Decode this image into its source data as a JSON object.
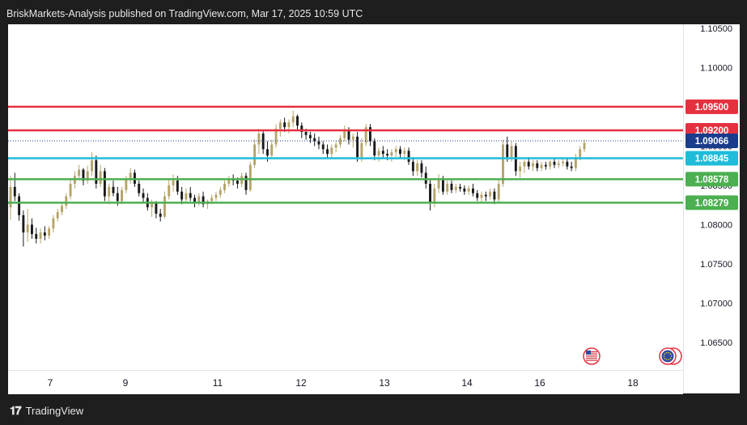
{
  "header": {
    "published": "BriskMarkets-Analysis published on TradingView.com, Mar 17, 2025 10:59 UTC"
  },
  "footer": {
    "brand": "TradingView"
  },
  "colors": {
    "up": "#b5a46a",
    "down": "#1a1a1a",
    "resistance": "#e5303f",
    "support": "#4caf50",
    "pivot": "#1fbcd9",
    "current": "#1a3c8c"
  },
  "chart_data": {
    "type": "candlestick",
    "ylim": [
      1.0615,
      1.1055
    ],
    "y_ticks": [
      "1.10500",
      "1.10000",
      "1.09500",
      "1.09000",
      "1.08500",
      "1.08000",
      "1.07500",
      "1.07000",
      "1.06500"
    ],
    "x_ticks": [
      "7",
      "9",
      "11",
      "12",
      "13",
      "14",
      "16",
      "18"
    ],
    "levels": [
      {
        "value": 1.095,
        "label": "1.09500",
        "role": "resistance"
      },
      {
        "value": 1.092,
        "label": "1.09200",
        "role": "resistance"
      },
      {
        "value": 1.08845,
        "label": "1.08845",
        "role": "pivot"
      },
      {
        "value": 1.08578,
        "label": "1.08578",
        "role": "support"
      },
      {
        "value": 1.08279,
        "label": "1.08279",
        "role": "support"
      }
    ],
    "current_price": {
      "value": 1.09066,
      "label": "1.09066"
    },
    "flags": [
      "us-flag-icon",
      "eu-flag-icon"
    ],
    "candles": [
      [
        1.0822,
        1.0862,
        1.0806,
        1.0848
      ],
      [
        1.0848,
        1.0866,
        1.083,
        1.0836
      ],
      [
        1.0836,
        1.084,
        1.0805,
        1.0812
      ],
      [
        1.0812,
        1.0818,
        1.0772,
        1.079
      ],
      [
        1.079,
        1.082,
        1.0778,
        1.08
      ],
      [
        1.08,
        1.0808,
        1.0782,
        1.0788
      ],
      [
        1.0788,
        1.0796,
        1.0776,
        1.0782
      ],
      [
        1.0782,
        1.0795,
        1.0776,
        1.079
      ],
      [
        1.079,
        1.0798,
        1.078,
        1.0786
      ],
      [
        1.0786,
        1.0798,
        1.0782,
        1.0795
      ],
      [
        1.0795,
        1.0812,
        1.079,
        1.0808
      ],
      [
        1.0808,
        1.082,
        1.0804,
        1.0816
      ],
      [
        1.0816,
        1.0828,
        1.0812,
        1.0824
      ],
      [
        1.0824,
        1.084,
        1.082,
        1.0836
      ],
      [
        1.0836,
        1.0858,
        1.0832,
        1.0852
      ],
      [
        1.0852,
        1.0868,
        1.0846,
        1.0862
      ],
      [
        1.0862,
        1.0876,
        1.0858,
        1.087
      ],
      [
        1.087,
        1.0872,
        1.085,
        1.0856
      ],
      [
        1.0856,
        1.0875,
        1.0852,
        1.0868
      ],
      [
        1.0868,
        1.0892,
        1.0862,
        1.0882
      ],
      [
        1.0882,
        1.0888,
        1.0846,
        1.0852
      ],
      [
        1.0852,
        1.0876,
        1.0848,
        1.0868
      ],
      [
        1.0868,
        1.0872,
        1.083,
        1.0836
      ],
      [
        1.0836,
        1.0852,
        1.0826,
        1.0848
      ],
      [
        1.0848,
        1.0856,
        1.0836,
        1.084
      ],
      [
        1.084,
        1.0848,
        1.0824,
        1.083
      ],
      [
        1.083,
        1.0848,
        1.0826,
        1.0844
      ],
      [
        1.0844,
        1.0862,
        1.084,
        1.0858
      ],
      [
        1.0858,
        1.0872,
        1.0852,
        1.0866
      ],
      [
        1.0866,
        1.087,
        1.0848,
        1.0852
      ],
      [
        1.0852,
        1.0856,
        1.0836,
        1.084
      ],
      [
        1.084,
        1.0846,
        1.0828,
        1.0834
      ],
      [
        1.0834,
        1.084,
        1.0818,
        1.0822
      ],
      [
        1.0822,
        1.0832,
        1.081,
        1.0828
      ],
      [
        1.0828,
        1.083,
        1.0808,
        1.0814
      ],
      [
        1.0814,
        1.082,
        1.0804,
        1.081
      ],
      [
        1.081,
        1.0842,
        1.0808,
        1.0836
      ],
      [
        1.0836,
        1.0858,
        1.0832,
        1.085
      ],
      [
        1.085,
        1.0864,
        1.0842,
        1.0856
      ],
      [
        1.0856,
        1.0862,
        1.0838,
        1.0842
      ],
      [
        1.0842,
        1.0848,
        1.0826,
        1.0832
      ],
      [
        1.0832,
        1.0846,
        1.0828,
        1.084
      ],
      [
        1.084,
        1.0848,
        1.083,
        1.0834
      ],
      [
        1.0834,
        1.0838,
        1.0822,
        1.0828
      ],
      [
        1.0828,
        1.084,
        1.0824,
        1.0836
      ],
      [
        1.0836,
        1.0842,
        1.0822,
        1.0826
      ],
      [
        1.0826,
        1.0832,
        1.082,
        1.083
      ],
      [
        1.083,
        1.0838,
        1.0826,
        1.0834
      ],
      [
        1.0834,
        1.0842,
        1.083,
        1.0838
      ],
      [
        1.0838,
        1.0848,
        1.0834,
        1.0844
      ],
      [
        1.0844,
        1.0856,
        1.084,
        1.0852
      ],
      [
        1.0852,
        1.0862,
        1.0848,
        1.0858
      ],
      [
        1.0858,
        1.0864,
        1.085,
        1.0856
      ],
      [
        1.0856,
        1.086,
        1.0846,
        1.0852
      ],
      [
        1.0852,
        1.0866,
        1.0848,
        1.0862
      ],
      [
        1.0862,
        1.0866,
        1.0838,
        1.0844
      ],
      [
        1.0844,
        1.088,
        1.0842,
        1.0876
      ],
      [
        1.0876,
        1.0908,
        1.0872,
        1.0902
      ],
      [
        1.0902,
        1.0922,
        1.089,
        1.0916
      ],
      [
        1.0916,
        1.092,
        1.089,
        1.0896
      ],
      [
        1.0896,
        1.0906,
        1.088,
        1.0888
      ],
      [
        1.0888,
        1.0908,
        1.0884,
        1.0902
      ],
      [
        1.0902,
        1.0928,
        1.0898,
        1.0922
      ],
      [
        1.0922,
        1.0934,
        1.0912,
        1.093
      ],
      [
        1.093,
        1.0936,
        1.0918,
        1.0924
      ],
      [
        1.0924,
        1.0934,
        1.0916,
        1.093
      ],
      [
        1.093,
        1.0945,
        1.0924,
        1.0938
      ],
      [
        1.0938,
        1.094,
        1.092,
        1.0926
      ],
      [
        1.0926,
        1.093,
        1.091,
        1.0918
      ],
      [
        1.0918,
        1.0922,
        1.0908,
        1.0914
      ],
      [
        1.0914,
        1.0918,
        1.0904,
        1.091
      ],
      [
        1.091,
        1.0916,
        1.09,
        1.0906
      ],
      [
        1.0906,
        1.0912,
        1.0896,
        1.0902
      ],
      [
        1.0902,
        1.0906,
        1.089,
        1.0896
      ],
      [
        1.0896,
        1.0902,
        1.0884,
        1.089
      ],
      [
        1.089,
        1.0902,
        1.0886,
        1.0898
      ],
      [
        1.0898,
        1.0906,
        1.0892,
        1.0902
      ],
      [
        1.0902,
        1.0914,
        1.0898,
        1.091
      ],
      [
        1.091,
        1.0926,
        1.0906,
        1.092
      ],
      [
        1.092,
        1.0924,
        1.0902,
        1.0908
      ],
      [
        1.0908,
        1.0916,
        1.0898,
        1.0912
      ],
      [
        1.0912,
        1.0918,
        1.088,
        1.0886
      ],
      [
        1.0886,
        1.091,
        1.088,
        1.0904
      ],
      [
        1.0904,
        1.0928,
        1.09,
        1.0924
      ],
      [
        1.0924,
        1.0928,
        1.09,
        1.0906
      ],
      [
        1.0906,
        1.091,
        1.0882,
        1.0888
      ],
      [
        1.0888,
        1.0898,
        1.088,
        1.0894
      ],
      [
        1.0894,
        1.09,
        1.0884,
        1.089
      ],
      [
        1.089,
        1.0896,
        1.0882,
        1.0888
      ],
      [
        1.0888,
        1.0896,
        1.088,
        1.0892
      ],
      [
        1.0892,
        1.09,
        1.0886,
        1.0896
      ],
      [
        1.0896,
        1.09,
        1.0884,
        1.089
      ],
      [
        1.089,
        1.0898,
        1.0882,
        1.0894
      ],
      [
        1.0894,
        1.0898,
        1.0876,
        1.088
      ],
      [
        1.088,
        1.0886,
        1.0862,
        1.0868
      ],
      [
        1.0868,
        1.0882,
        1.0862,
        1.0878
      ],
      [
        1.0878,
        1.0882,
        1.086,
        1.0866
      ],
      [
        1.0866,
        1.0874,
        1.0846,
        1.0852
      ],
      [
        1.0852,
        1.0858,
        1.0818,
        1.0828
      ],
      [
        1.0828,
        1.0852,
        1.0822,
        1.0846
      ],
      [
        1.0846,
        1.0864,
        1.084,
        1.0858
      ],
      [
        1.0858,
        1.0862,
        1.0838,
        1.0842
      ],
      [
        1.0842,
        1.0856,
        1.0838,
        1.0852
      ],
      [
        1.0852,
        1.0856,
        1.084,
        1.0844
      ],
      [
        1.0844,
        1.0852,
        1.084,
        1.0848
      ],
      [
        1.0848,
        1.0852,
        1.0842,
        1.0846
      ],
      [
        1.0846,
        1.085,
        1.0838,
        1.0842
      ],
      [
        1.0842,
        1.085,
        1.0838,
        1.0846
      ],
      [
        1.0846,
        1.0852,
        1.0836,
        1.084
      ],
      [
        1.084,
        1.0844,
        1.083,
        1.0834
      ],
      [
        1.0834,
        1.0842,
        1.0828,
        1.0838
      ],
      [
        1.0838,
        1.0842,
        1.083,
        1.0836
      ],
      [
        1.0836,
        1.0846,
        1.0832,
        1.0842
      ],
      [
        1.0842,
        1.0846,
        1.0826,
        1.0832
      ],
      [
        1.0832,
        1.0858,
        1.0828,
        1.0852
      ],
      [
        1.0852,
        1.0908,
        1.0848,
        1.0902
      ],
      [
        1.0902,
        1.0912,
        1.088,
        1.0886
      ],
      [
        1.0886,
        1.0906,
        1.088,
        1.09
      ],
      [
        1.09,
        1.0904,
        1.0862,
        1.0868
      ],
      [
        1.0868,
        1.088,
        1.086,
        1.0874
      ],
      [
        1.0874,
        1.0882,
        1.0866,
        1.088
      ],
      [
        1.088,
        1.0886,
        1.087,
        1.0874
      ],
      [
        1.0874,
        1.0882,
        1.0868,
        1.0878
      ],
      [
        1.0878,
        1.0882,
        1.0868,
        1.0872
      ],
      [
        1.0872,
        1.088,
        1.0868,
        1.0876
      ],
      [
        1.0876,
        1.088,
        1.087,
        1.0874
      ],
      [
        1.0874,
        1.0882,
        1.087,
        1.088
      ],
      [
        1.088,
        1.0884,
        1.0872,
        1.0876
      ],
      [
        1.0876,
        1.0882,
        1.0872,
        1.0878
      ],
      [
        1.0878,
        1.0886,
        1.0874,
        1.088
      ],
      [
        1.088,
        1.0884,
        1.087,
        1.0874
      ],
      [
        1.0874,
        1.088,
        1.0868,
        1.0872
      ],
      [
        1.0872,
        1.089,
        1.0868,
        1.0886
      ],
      [
        1.0886,
        1.09,
        1.0882,
        1.0896
      ],
      [
        1.0896,
        1.0908,
        1.0892,
        1.0904
      ]
    ]
  }
}
